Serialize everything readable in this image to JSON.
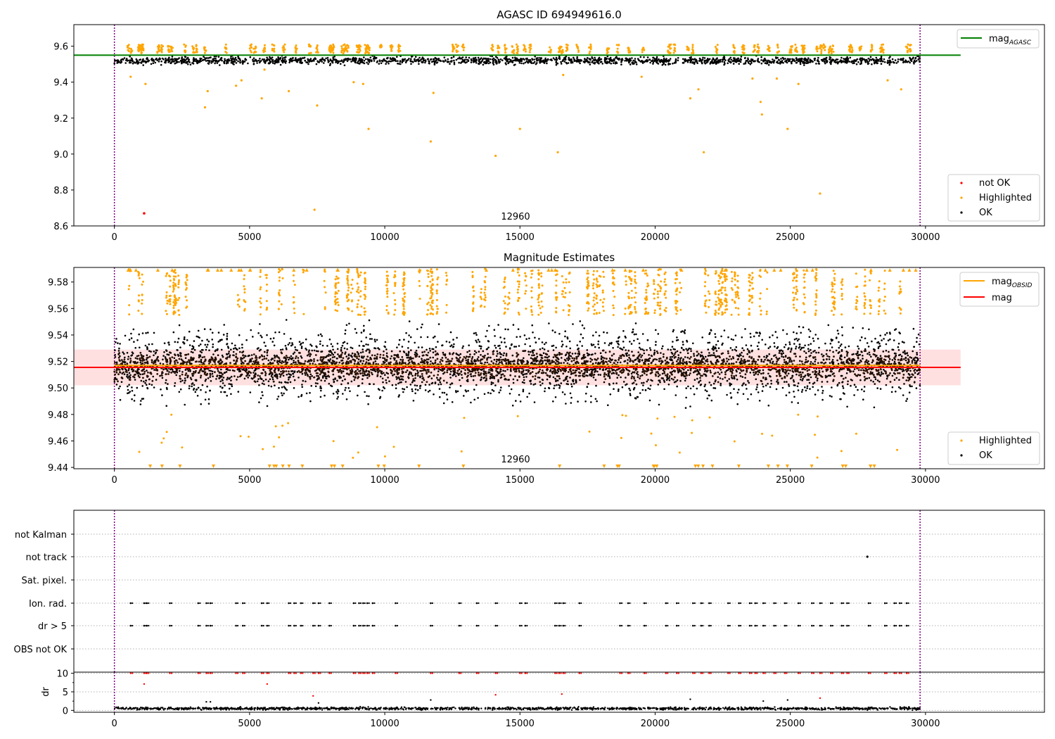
{
  "chart_data": [
    {
      "type": "scatter",
      "title": "AGASC ID 694949616.0",
      "xlim": [
        -1500,
        34400
      ],
      "ylim": [
        8.6,
        9.72
      ],
      "xticks": [
        "0",
        "5000",
        "10000",
        "15000",
        "20000",
        "25000",
        "30000"
      ],
      "xtick_values": [
        0,
        5000,
        10000,
        15000,
        20000,
        25000,
        30000
      ],
      "yticks": [
        "8.6",
        "8.8",
        "9.0",
        "9.2",
        "9.4",
        "9.6"
      ],
      "ytick_values": [
        8.6,
        8.8,
        9.0,
        9.2,
        9.4,
        9.6
      ],
      "vlines": [
        0,
        29800
      ],
      "annotation": "12960",
      "hlines": [
        {
          "name": "mag_AGASC",
          "value": 9.55,
          "x_range": [
            -1500,
            31300
          ],
          "color": "#008000"
        }
      ],
      "series": [
        {
          "name": "not OK",
          "color": "#ff0000",
          "points": [
            [
              1100,
              8.67
            ]
          ]
        },
        {
          "name": "Highlighted",
          "color": "#ffa500",
          "band": [
            9.56,
            9.61
          ],
          "outliers": [
            [
              600,
              9.43
            ],
            [
              1150,
              9.39
            ],
            [
              3350,
              9.26
            ],
            [
              3450,
              9.35
            ],
            [
              4500,
              9.38
            ],
            [
              4700,
              9.41
            ],
            [
              5450,
              9.31
            ],
            [
              5550,
              9.47
            ],
            [
              6450,
              9.35
            ],
            [
              7400,
              8.69
            ],
            [
              7500,
              9.27
            ],
            [
              8850,
              9.4
            ],
            [
              9200,
              9.39
            ],
            [
              9400,
              9.14
            ],
            [
              11700,
              9.07
            ],
            [
              11800,
              9.34
            ],
            [
              14100,
              8.99
            ],
            [
              15000,
              9.14
            ],
            [
              16400,
              9.01
            ],
            [
              16600,
              9.44
            ],
            [
              19500,
              9.43
            ],
            [
              21300,
              9.31
            ],
            [
              21600,
              9.36
            ],
            [
              21800,
              9.01
            ],
            [
              23600,
              9.42
            ],
            [
              23900,
              9.29
            ],
            [
              23950,
              9.22
            ],
            [
              24500,
              9.42
            ],
            [
              24900,
              9.14
            ],
            [
              25300,
              9.39
            ],
            [
              26100,
              8.78
            ],
            [
              28600,
              9.41
            ],
            [
              29100,
              9.36
            ]
          ]
        },
        {
          "name": "OK",
          "color": "#000000",
          "band": [
            9.49,
            9.55
          ]
        }
      ],
      "legend_upper": [
        "mag_AGASC"
      ],
      "legend_lower": [
        "not OK",
        "Highlighted",
        "OK"
      ]
    },
    {
      "type": "scatter",
      "title": "Magnitude Estimates",
      "xlim": [
        -1500,
        34400
      ],
      "ylim": [
        9.439,
        9.591
      ],
      "xticks": [
        "0",
        "5000",
        "10000",
        "15000",
        "20000",
        "25000",
        "30000"
      ],
      "xtick_values": [
        0,
        5000,
        10000,
        15000,
        20000,
        25000,
        30000
      ],
      "yticks": [
        "9.44",
        "9.46",
        "9.48",
        "9.50",
        "9.52",
        "9.54",
        "9.56",
        "9.58"
      ],
      "ytick_values": [
        9.44,
        9.46,
        9.48,
        9.5,
        9.52,
        9.54,
        9.56,
        9.58
      ],
      "vlines": [
        0,
        29800
      ],
      "annotation": "12960",
      "hlines": [
        {
          "name": "mag_OBSID",
          "value": 9.517,
          "x_range": [
            0,
            29800
          ],
          "color": "#ffa500"
        },
        {
          "name": "mag",
          "value": 9.5155,
          "x_range": [
            -1500,
            31300
          ],
          "color": "#ff0000",
          "band": [
            9.502,
            9.529
          ]
        }
      ],
      "series": [
        {
          "name": "Highlighted",
          "color": "#ffa500",
          "band": [
            9.555,
            9.59
          ]
        },
        {
          "name": "OK",
          "color": "#000000",
          "band": [
            9.48,
            9.555
          ]
        }
      ],
      "legend_upper": [
        "mag_OBSID",
        "mag"
      ],
      "legend_lower": [
        "Highlighted",
        "OK"
      ]
    },
    {
      "type": "scatter",
      "title": "",
      "xlim": [
        -1500,
        34400
      ],
      "categories": [
        "not Kalman",
        "not track",
        "Sat. pixel.",
        "Ion. rad.",
        "dr > 5",
        "OBS not OK"
      ],
      "vlines": [
        0,
        29800
      ],
      "flag_x": [
        600,
        1100,
        1200,
        2050,
        3100,
        3400,
        3550,
        4500,
        4750,
        5450,
        5650,
        6450,
        6650,
        6900,
        7350,
        7550,
        7950,
        8850,
        9050,
        9200,
        9350,
        9550,
        10400,
        11700,
        12750,
        13400,
        14100,
        15000,
        15200,
        16300,
        16450,
        16600,
        17200,
        18700,
        19000,
        19600,
        20400,
        20800,
        21400,
        21700,
        22000,
        22700,
        23100,
        23500,
        23700,
        24000,
        24400,
        24800,
        25300,
        25800,
        26100,
        26500,
        26900,
        27100,
        27900,
        28500,
        28850,
        29050,
        29300
      ],
      "not_track_points": [
        [
          27850,
          1
        ]
      ]
    },
    {
      "type": "scatter",
      "title": "",
      "xlim": [
        -1500,
        34400
      ],
      "ylim": [
        -0.5,
        10.3
      ],
      "ylabel": "dr",
      "xticks": [
        "0",
        "5000",
        "10000",
        "15000",
        "20000",
        "25000",
        "30000"
      ],
      "xtick_values": [
        0,
        5000,
        10000,
        15000,
        20000,
        25000,
        30000
      ],
      "yticks": [
        "0",
        "5",
        "10"
      ],
      "ytick_values": [
        0,
        5,
        10
      ],
      "vlines": [
        0,
        29800
      ],
      "series": [
        {
          "name": "dr > 5",
          "color": "#ff0000",
          "value": 10,
          "extra": [
            [
              1100,
              7.1
            ],
            [
              5650,
              7.1
            ],
            [
              7350,
              3.9
            ],
            [
              14100,
              4.2
            ],
            [
              16550,
              4.4
            ],
            [
              26100,
              3.3
            ]
          ]
        },
        {
          "name": "dr",
          "color": "#000000",
          "band": [
            0,
            1
          ],
          "outliers": [
            [
              3400,
              2.3
            ],
            [
              3550,
              2.3
            ],
            [
              11700,
              2.8
            ],
            [
              21300,
              3.0
            ],
            [
              24000,
              2.5
            ],
            [
              24900,
              2.8
            ],
            [
              7550,
              2.0
            ]
          ]
        }
      ]
    }
  ]
}
